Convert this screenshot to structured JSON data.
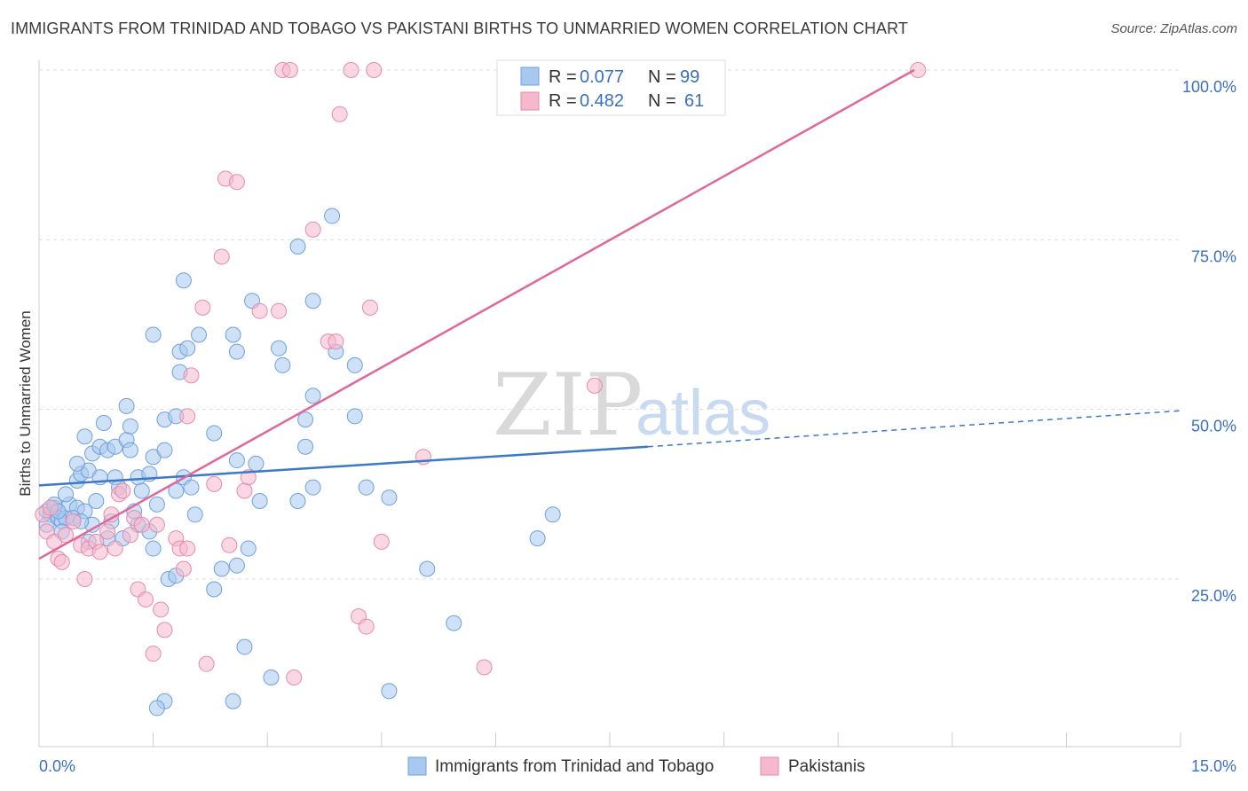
{
  "title": "IMMIGRANTS FROM TRINIDAD AND TOBAGO VS PAKISTANI BIRTHS TO UNMARRIED WOMEN CORRELATION CHART",
  "source": "Source: ZipAtlas.com",
  "watermark": {
    "zip": "ZIP",
    "atlas": "atlas"
  },
  "colors": {
    "blue": "#3b78c9",
    "pink": "#e0679a",
    "blue_fill": "#a8c8ef",
    "pink_fill": "#f5b8cc",
    "tick_text": "#3a6fc4"
  },
  "chart_data": {
    "type": "scatter",
    "xlabel": "",
    "ylabel": "Births to Unmarried Women",
    "xlim": [
      0,
      15
    ],
    "ylim": [
      0,
      105
    ],
    "x_tick_labels": [
      "0.0%",
      "15.0%"
    ],
    "y_ticks": [
      25,
      50,
      75,
      100
    ],
    "y_tick_labels": [
      "25.0%",
      "50.0%",
      "75.0%",
      "100.0%"
    ],
    "grid": true,
    "legend_position": "top-center",
    "stats": [
      {
        "r_label": "R = ",
        "r": "0.077",
        "n_label": "N = ",
        "n": "99"
      },
      {
        "r_label": "R = ",
        "r": "0.482",
        "n_label": "N = ",
        "n": "61"
      }
    ],
    "series": [
      {
        "name": "Immigrants from Trinidad and Tobago",
        "color": "#3b78c9",
        "trend": {
          "x": [
            0,
            8.0
          ],
          "y": [
            38.8,
            44.5
          ],
          "dashed_to": [
            15,
            49.8
          ]
        },
        "points": [
          [
            0.1,
            35.0
          ],
          [
            0.15,
            34.5
          ],
          [
            0.2,
            35.5
          ],
          [
            0.1,
            33.0
          ],
          [
            0.25,
            34.0
          ],
          [
            0.3,
            33.5
          ],
          [
            0.35,
            34.0
          ],
          [
            0.2,
            36.0
          ],
          [
            0.4,
            36.0
          ],
          [
            0.5,
            35.5
          ],
          [
            0.35,
            37.5
          ],
          [
            0.5,
            39.5
          ],
          [
            0.55,
            40.5
          ],
          [
            0.65,
            41.0
          ],
          [
            0.5,
            42.0
          ],
          [
            0.7,
            43.5
          ],
          [
            0.8,
            44.5
          ],
          [
            0.9,
            44.0
          ],
          [
            1.0,
            44.5
          ],
          [
            1.15,
            45.5
          ],
          [
            0.6,
            46.0
          ],
          [
            0.85,
            48.0
          ],
          [
            1.2,
            47.5
          ],
          [
            1.15,
            50.5
          ],
          [
            1.2,
            44.0
          ],
          [
            1.3,
            40.0
          ],
          [
            1.45,
            40.5
          ],
          [
            1.5,
            43.0
          ],
          [
            1.65,
            44.0
          ],
          [
            1.0,
            40.0
          ],
          [
            0.8,
            40.0
          ],
          [
            1.05,
            38.5
          ],
          [
            1.35,
            38.0
          ],
          [
            1.55,
            36.0
          ],
          [
            1.3,
            33.0
          ],
          [
            0.9,
            31.0
          ],
          [
            0.7,
            33.0
          ],
          [
            1.45,
            32.0
          ],
          [
            1.5,
            29.5
          ],
          [
            1.7,
            25.0
          ],
          [
            1.8,
            25.5
          ],
          [
            1.9,
            40.0
          ],
          [
            2.0,
            38.5
          ],
          [
            1.8,
            38.0
          ],
          [
            2.05,
            34.5
          ],
          [
            1.65,
            48.5
          ],
          [
            1.8,
            49.0
          ],
          [
            2.3,
            46.5
          ],
          [
            1.5,
            61.0
          ],
          [
            1.85,
            58.5
          ],
          [
            1.85,
            55.5
          ],
          [
            1.95,
            59.0
          ],
          [
            2.1,
            61.0
          ],
          [
            1.9,
            69.0
          ],
          [
            2.55,
            61.0
          ],
          [
            2.6,
            58.5
          ],
          [
            2.8,
            66.0
          ],
          [
            2.6,
            42.5
          ],
          [
            2.85,
            42.0
          ],
          [
            2.9,
            36.5
          ],
          [
            2.6,
            27.0
          ],
          [
            2.75,
            29.5
          ],
          [
            2.4,
            26.5
          ],
          [
            2.3,
            23.5
          ],
          [
            2.7,
            15.0
          ],
          [
            2.55,
            7.0
          ],
          [
            1.65,
            7.0
          ],
          [
            1.55,
            6.0
          ],
          [
            3.05,
            10.5
          ],
          [
            3.4,
            74.0
          ],
          [
            3.15,
            59.0
          ],
          [
            3.2,
            56.5
          ],
          [
            3.6,
            66.0
          ],
          [
            3.5,
            48.5
          ],
          [
            3.6,
            52.0
          ],
          [
            3.5,
            44.5
          ],
          [
            3.6,
            38.5
          ],
          [
            3.4,
            36.5
          ],
          [
            3.9,
            58.5
          ],
          [
            3.85,
            78.5
          ],
          [
            4.15,
            49.0
          ],
          [
            4.15,
            56.5
          ],
          [
            4.3,
            38.5
          ],
          [
            4.6,
            37.0
          ],
          [
            4.6,
            8.5
          ],
          [
            5.1,
            26.5
          ],
          [
            5.45,
            18.5
          ],
          [
            6.75,
            34.5
          ],
          [
            6.55,
            31.0
          ],
          [
            0.95,
            33.5
          ],
          [
            1.25,
            35.0
          ],
          [
            1.1,
            31.0
          ],
          [
            0.6,
            35.0
          ],
          [
            0.75,
            36.5
          ],
          [
            0.45,
            34.0
          ],
          [
            0.3,
            32.0
          ],
          [
            0.25,
            35.0
          ],
          [
            0.55,
            33.5
          ],
          [
            0.65,
            30.5
          ]
        ]
      },
      {
        "name": "Pakistanis",
        "color": "#e0679a",
        "trend": {
          "x": [
            0,
            11.5
          ],
          "y": [
            28.0,
            100.0
          ]
        },
        "points": [
          [
            0.05,
            34.5
          ],
          [
            0.1,
            32.0
          ],
          [
            0.15,
            35.5
          ],
          [
            0.2,
            30.5
          ],
          [
            0.25,
            28.0
          ],
          [
            0.3,
            27.5
          ],
          [
            0.35,
            31.5
          ],
          [
            0.45,
            33.5
          ],
          [
            0.55,
            30.0
          ],
          [
            0.65,
            29.5
          ],
          [
            0.6,
            25.0
          ],
          [
            0.75,
            30.5
          ],
          [
            0.8,
            29.0
          ],
          [
            0.9,
            32.0
          ],
          [
            0.95,
            34.5
          ],
          [
            1.0,
            29.5
          ],
          [
            1.05,
            37.5
          ],
          [
            1.1,
            38.0
          ],
          [
            1.2,
            31.5
          ],
          [
            1.25,
            34.0
          ],
          [
            1.35,
            33.0
          ],
          [
            1.3,
            23.5
          ],
          [
            1.4,
            22.0
          ],
          [
            1.5,
            14.0
          ],
          [
            1.6,
            20.5
          ],
          [
            1.65,
            17.5
          ],
          [
            1.55,
            33.0
          ],
          [
            1.8,
            31.0
          ],
          [
            1.85,
            29.5
          ],
          [
            1.95,
            29.5
          ],
          [
            1.9,
            26.5
          ],
          [
            1.95,
            49.0
          ],
          [
            2.0,
            55.0
          ],
          [
            2.15,
            65.0
          ],
          [
            2.3,
            39.0
          ],
          [
            2.2,
            12.5
          ],
          [
            2.4,
            72.5
          ],
          [
            2.45,
            84.0
          ],
          [
            2.6,
            83.5
          ],
          [
            2.7,
            38.0
          ],
          [
            2.75,
            40.0
          ],
          [
            2.5,
            30.0
          ],
          [
            2.9,
            64.5
          ],
          [
            3.2,
            100.0
          ],
          [
            3.3,
            100.0
          ],
          [
            3.15,
            64.5
          ],
          [
            3.35,
            10.5
          ],
          [
            3.6,
            76.5
          ],
          [
            3.8,
            60.0
          ],
          [
            3.9,
            60.0
          ],
          [
            3.95,
            93.5
          ],
          [
            4.1,
            100.0
          ],
          [
            4.4,
            100.0
          ],
          [
            4.35,
            65.0
          ],
          [
            4.5,
            30.5
          ],
          [
            4.2,
            19.5
          ],
          [
            4.3,
            18.0
          ],
          [
            5.05,
            43.0
          ],
          [
            5.85,
            12.0
          ],
          [
            7.3,
            53.5
          ],
          [
            11.55,
            100.0
          ]
        ]
      }
    ]
  }
}
